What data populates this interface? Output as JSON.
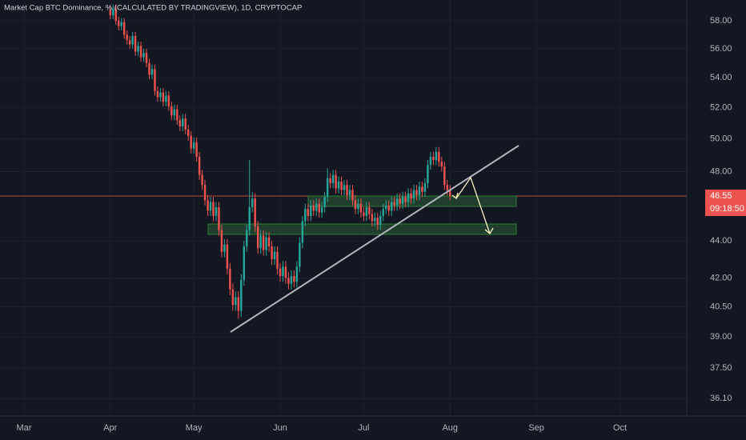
{
  "chart_data": {
    "type": "candlestick",
    "title": "Market Cap BTC Dominance, % (CALCULATED BY TRADINGVIEW), 1D, CRYPTOCAP",
    "log_scale": true,
    "grid": true,
    "up_color": "#26a69a",
    "down_color": "#ef5350",
    "last_price": 46.55,
    "countdown": "09:18:50",
    "xlim": [
      -8.6,
      238
    ],
    "xticks": [
      {
        "value": 0,
        "label": "Mar"
      },
      {
        "value": 31,
        "label": "Apr"
      },
      {
        "value": 61,
        "label": "May"
      },
      {
        "value": 92,
        "label": "Jun"
      },
      {
        "value": 122,
        "label": "Jul"
      },
      {
        "value": 153,
        "label": "Aug"
      },
      {
        "value": 184,
        "label": "Sep"
      },
      {
        "value": 214,
        "label": "Oct"
      }
    ],
    "ylim": [
      35.32,
      59.53
    ],
    "yticks": [
      {
        "value": 58,
        "label": "58.00"
      },
      {
        "value": 56,
        "label": "56.00"
      },
      {
        "value": 54,
        "label": "54.00"
      },
      {
        "value": 52,
        "label": "52.00"
      },
      {
        "value": 50,
        "label": "50.00"
      },
      {
        "value": 48,
        "label": "48.00"
      },
      {
        "value": 44,
        "label": "44.00"
      },
      {
        "value": 42,
        "label": "42.00"
      },
      {
        "value": 40.5,
        "label": "40.50"
      },
      {
        "value": 39,
        "label": "39.00"
      },
      {
        "value": 37.5,
        "label": "37.50"
      },
      {
        "value": 36.1,
        "label": "36.10"
      }
    ],
    "x": [
      31,
      32,
      33,
      34,
      35,
      36,
      37,
      38,
      39,
      40,
      41,
      42,
      43,
      44,
      45,
      46,
      47,
      48,
      49,
      50,
      51,
      52,
      53,
      54,
      55,
      56,
      57,
      58,
      59,
      60,
      61,
      62,
      63,
      64,
      65,
      66,
      67,
      68,
      69,
      70,
      71,
      72,
      73,
      74,
      75,
      76,
      77,
      78,
      79,
      80,
      81,
      82,
      83,
      84,
      85,
      86,
      87,
      88,
      89,
      90,
      91,
      92,
      93,
      94,
      95,
      96,
      97,
      98,
      99,
      100,
      101,
      102,
      103,
      104,
      105,
      106,
      107,
      108,
      109,
      110,
      111,
      112,
      113,
      114,
      115,
      116,
      117,
      118,
      119,
      120,
      121,
      122,
      123,
      124,
      125,
      126,
      127,
      128,
      129,
      130,
      131,
      132,
      133,
      134,
      135,
      136,
      137,
      138,
      139,
      140,
      141,
      142,
      143,
      144,
      145,
      146,
      147,
      148,
      149,
      150,
      151,
      152,
      153
    ],
    "open": [
      58.8,
      58.4,
      58.9,
      58.0,
      57.6,
      57.9,
      57.0,
      56.6,
      56.3,
      56.9,
      55.8,
      56.2,
      55.4,
      55.7,
      55.0,
      54.2,
      54.6,
      53.1,
      52.7,
      53.0,
      52.4,
      52.8,
      52.1,
      51.5,
      51.9,
      51.2,
      50.8,
      51.3,
      50.6,
      50.2,
      49.4,
      49.8,
      48.9,
      47.8,
      47.2,
      46.3,
      45.7,
      46.2,
      45.4,
      45.9,
      44.6,
      43.4,
      43.8,
      42.5,
      41.4,
      40.6,
      41.0,
      40.3,
      41.9,
      43.7,
      44.6,
      45.9,
      46.4,
      44.8,
      43.6,
      44.3,
      43.5,
      44.2,
      43.7,
      43.0,
      43.4,
      42.5,
      42.1,
      42.6,
      42.0,
      41.7,
      42.1,
      41.8,
      42.6,
      43.9,
      45.1,
      45.8,
      45.4,
      46.0,
      45.7,
      46.1,
      45.6,
      45.9,
      46.5,
      47.6,
      47.3,
      47.8,
      47.0,
      47.4,
      46.9,
      47.2,
      46.6,
      46.9,
      46.3,
      45.8,
      46.1,
      45.6,
      45.4,
      45.9,
      45.5,
      45.1,
      45.3,
      44.9,
      45.4,
      45.8,
      46.0,
      45.7,
      46.2,
      46.0,
      46.4,
      46.1,
      46.5,
      46.2,
      46.7,
      46.4,
      46.9,
      46.6,
      47.1,
      46.8,
      47.3,
      48.4,
      48.9,
      48.7,
      49.2,
      48.6,
      48.3,
      47.2,
      46.9
    ],
    "high": [
      59.1,
      59.2,
      59.2,
      58.3,
      58.2,
      58.2,
      57.3,
      56.9,
      57.2,
      57.2,
      56.5,
      56.5,
      56.0,
      56.0,
      55.3,
      54.9,
      54.9,
      53.4,
      53.3,
      53.3,
      53.1,
      53.1,
      52.4,
      52.2,
      52.2,
      51.5,
      51.6,
      51.6,
      50.9,
      50.5,
      50.1,
      50.1,
      49.2,
      48.1,
      47.5,
      46.6,
      46.5,
      46.5,
      46.2,
      46.2,
      44.9,
      44.1,
      44.1,
      42.8,
      41.7,
      41.3,
      41.3,
      42.2,
      44.0,
      44.9,
      48.7,
      46.8,
      46.7,
      45.1,
      44.6,
      44.6,
      44.5,
      44.5,
      44.0,
      43.7,
      43.7,
      42.8,
      42.9,
      42.9,
      42.3,
      42.4,
      42.4,
      42.9,
      44.2,
      45.4,
      46.1,
      46.1,
      46.3,
      46.3,
      46.4,
      46.4,
      46.2,
      46.8,
      48.2,
      47.9,
      48.1,
      48.1,
      47.7,
      47.7,
      47.5,
      47.5,
      47.2,
      47.2,
      46.6,
      46.4,
      46.4,
      45.9,
      46.2,
      46.2,
      45.8,
      45.6,
      45.6,
      45.7,
      46.1,
      46.3,
      46.3,
      46.5,
      46.5,
      46.7,
      46.7,
      46.8,
      46.8,
      47.0,
      47.0,
      47.2,
      47.2,
      47.4,
      47.4,
      47.6,
      48.7,
      49.2,
      49.2,
      49.5,
      49.5,
      48.9,
      48.6,
      47.5,
      47.2
    ],
    "low": [
      58.1,
      58.1,
      57.7,
      57.3,
      57.3,
      56.7,
      56.3,
      56.0,
      56.0,
      55.5,
      55.5,
      55.1,
      55.1,
      54.7,
      53.9,
      53.9,
      52.8,
      52.4,
      52.4,
      52.1,
      52.1,
      51.8,
      51.2,
      51.2,
      50.9,
      50.5,
      50.5,
      50.3,
      49.9,
      49.1,
      49.1,
      48.6,
      47.5,
      46.9,
      46.0,
      45.4,
      45.4,
      45.1,
      45.1,
      44.3,
      43.1,
      43.1,
      42.2,
      41.1,
      40.3,
      40.3,
      39.9,
      40.0,
      41.6,
      43.4,
      44.3,
      45.6,
      44.5,
      43.3,
      43.3,
      43.2,
      43.2,
      43.4,
      42.7,
      42.7,
      42.2,
      41.8,
      41.8,
      41.7,
      41.4,
      41.4,
      41.5,
      41.5,
      42.3,
      43.6,
      44.8,
      45.1,
      45.1,
      45.4,
      45.4,
      45.3,
      45.3,
      45.6,
      46.2,
      47.0,
      47.0,
      46.7,
      46.7,
      46.6,
      46.6,
      46.3,
      46.3,
      46.0,
      45.5,
      45.5,
      45.3,
      45.1,
      45.1,
      45.2,
      44.8,
      44.8,
      44.6,
      44.6,
      45.1,
      45.5,
      45.4,
      45.4,
      45.7,
      45.7,
      45.8,
      45.8,
      45.9,
      45.9,
      46.1,
      46.1,
      46.3,
      46.3,
      46.5,
      46.5,
      47.0,
      48.1,
      48.4,
      48.4,
      48.3,
      48.0,
      46.9,
      46.6,
      46.3
    ],
    "close": [
      58.4,
      58.9,
      58.0,
      57.6,
      57.9,
      57.0,
      56.6,
      56.3,
      56.9,
      55.8,
      56.2,
      55.4,
      55.7,
      55.0,
      54.2,
      54.6,
      53.1,
      52.7,
      53.0,
      52.4,
      52.8,
      52.1,
      51.5,
      51.9,
      51.2,
      50.8,
      51.3,
      50.6,
      50.2,
      49.4,
      49.8,
      48.9,
      47.8,
      47.2,
      46.3,
      45.7,
      46.2,
      45.4,
      45.9,
      44.6,
      43.4,
      43.8,
      42.5,
      41.4,
      40.6,
      41.0,
      40.3,
      41.9,
      43.7,
      44.6,
      45.9,
      46.4,
      44.8,
      43.6,
      44.3,
      43.5,
      44.2,
      43.7,
      43.0,
      43.4,
      42.5,
      42.1,
      42.6,
      42.0,
      41.7,
      42.1,
      41.8,
      42.6,
      43.9,
      45.1,
      45.8,
      45.4,
      46.0,
      45.7,
      46.1,
      45.6,
      45.9,
      46.5,
      47.6,
      47.3,
      47.8,
      47.0,
      47.4,
      46.9,
      47.2,
      46.6,
      46.9,
      46.3,
      45.8,
      46.1,
      45.6,
      45.4,
      45.9,
      45.5,
      45.1,
      45.3,
      44.9,
      45.4,
      45.8,
      46.0,
      45.7,
      46.2,
      46.0,
      46.4,
      46.1,
      46.5,
      46.2,
      46.7,
      46.4,
      46.9,
      46.6,
      47.1,
      46.8,
      47.3,
      48.4,
      48.9,
      48.7,
      49.2,
      48.6,
      48.3,
      47.2,
      46.9,
      46.55
    ]
  }
}
